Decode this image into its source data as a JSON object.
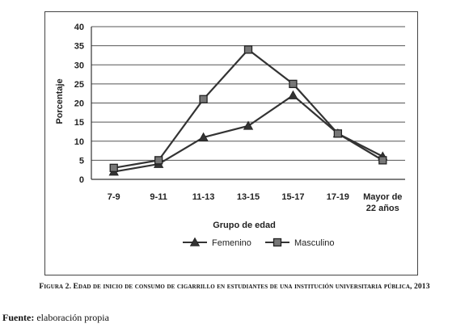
{
  "chart_data": {
    "type": "line",
    "categories": [
      "7-9",
      "9-11",
      "11-13",
      "13-15",
      "15-17",
      "17-19",
      "Mayor de 22 años"
    ],
    "category_lines": [
      [
        "7-9"
      ],
      [
        "9-11"
      ],
      [
        "11-13"
      ],
      [
        "13-15"
      ],
      [
        "15-17"
      ],
      [
        "17-19"
      ],
      [
        "Mayor de",
        "22 años"
      ]
    ],
    "series": [
      {
        "name": "Femenino",
        "marker": "triangle",
        "values": [
          2,
          4,
          11,
          14,
          22,
          12,
          6
        ]
      },
      {
        "name": "Masculino",
        "marker": "square",
        "values": [
          3,
          5,
          21,
          34,
          25,
          12,
          5
        ]
      }
    ],
    "ylim": [
      0,
      40
    ],
    "yticks": [
      0,
      5,
      10,
      15,
      20,
      25,
      30,
      35,
      40
    ],
    "xlabel": "Grupo de edad",
    "ylabel": "Porcentaje",
    "grid": "horizontal",
    "legend_position": "bottom"
  },
  "caption": "Figura 2. Edad de inicio de consumo de cigarrillo en estudiantes de una institución universitaria pública, 2013",
  "source": {
    "label": "Fuente:",
    "text": "elaboración propia"
  }
}
